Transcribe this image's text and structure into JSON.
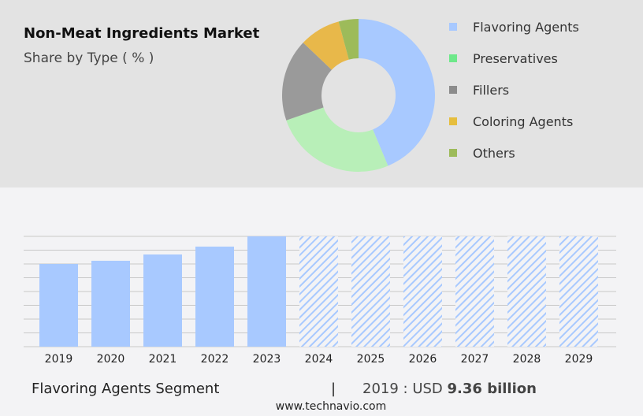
{
  "title": "Non-Meat Ingredients Market",
  "subtitle": "Share by Type ( % )",
  "footer": {
    "segment": "Flavoring Agents Segment",
    "separator": "|",
    "year_value": "2019 : USD",
    "value": "9.36 billion",
    "url": "www.technavio.com"
  },
  "chart_data": [
    {
      "type": "pie",
      "donut": true,
      "legend_position": "right",
      "categories": [
        "Flavoring Agents",
        "Preservatives",
        "Fillers",
        "Coloring Agents",
        "Others"
      ],
      "values": [
        43.7,
        26,
        17.4,
        8.7,
        4.2
      ],
      "colors": [
        "#a8c9ff",
        "#b8efb8",
        "#9a9a9a",
        "#e8b84a",
        "#9dbb5a"
      ],
      "legend_colors": [
        "#a8c9ff",
        "#6ee88a",
        "#8c8c8c",
        "#e6be3e",
        "#9dbb5a"
      ]
    },
    {
      "type": "bar",
      "categories": [
        "2019",
        "2020",
        "2021",
        "2022",
        "2023",
        "2024",
        "2025",
        "2026",
        "2027",
        "2028",
        "2029"
      ],
      "values": [
        9.36,
        9.72,
        10.43,
        11.32,
        12.48,
        null,
        null,
        null,
        null,
        null,
        null
      ],
      "forecast_hatched": [
        "2024",
        "2025",
        "2026",
        "2027",
        "2028",
        "2029"
      ],
      "ylim": [
        0,
        12.48
      ],
      "grid": true,
      "color": "#a8c9ff"
    }
  ]
}
